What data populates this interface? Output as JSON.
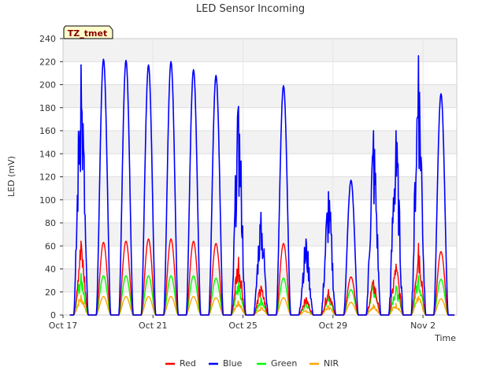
{
  "chart_data": {
    "type": "line",
    "title": "LED Sensor Incoming",
    "xlabel": "Time",
    "ylabel": "LED (mV)",
    "ylim": [
      0,
      240
    ],
    "yticks": [
      0,
      20,
      40,
      60,
      80,
      100,
      120,
      140,
      160,
      180,
      200,
      220,
      240
    ],
    "xlim_days": [
      0,
      17.5
    ],
    "x_unit": "days since Oct 17",
    "xticks": [
      {
        "day": 0,
        "label": "Oct 17"
      },
      {
        "day": 4,
        "label": "Oct 21"
      },
      {
        "day": 8,
        "label": "Oct 25"
      },
      {
        "day": 12,
        "label": "Oct 29"
      },
      {
        "day": 16,
        "label": "Nov 2"
      }
    ],
    "grid": true,
    "legend": "bottom-center",
    "badge": "TZ_tmet",
    "daily_peak_day": [
      0.8,
      1.8,
      2.8,
      3.8,
      4.8,
      5.8,
      6.8,
      7.8,
      8.8,
      9.8,
      10.8,
      11.8,
      12.8,
      13.8,
      14.8,
      15.8,
      16.8
    ],
    "series": [
      {
        "name": "Red",
        "color": "#ff0000",
        "peaks": [
          64,
          63,
          64,
          66,
          66,
          64,
          62,
          50,
          25,
          62,
          15,
          22,
          33,
          30,
          44,
          62,
          55
        ]
      },
      {
        "name": "Blue",
        "color": "#0000ff",
        "peaks": [
          217,
          222,
          221,
          217,
          220,
          213,
          208,
          181,
          89,
          199,
          66,
          107,
          117,
          160,
          160,
          225,
          192
        ]
      },
      {
        "name": "Green",
        "color": "#00ff00",
        "peaks": [
          36,
          34,
          34,
          34,
          34,
          34,
          32,
          28,
          15,
          32,
          10,
          16,
          22,
          27,
          25,
          34,
          31
        ]
      },
      {
        "name": "NIR",
        "color": "#ffa500",
        "peaks": [
          17,
          16,
          16,
          16,
          16,
          16,
          15,
          12,
          7,
          15,
          4,
          8,
          11,
          9,
          10,
          16,
          14
        ]
      }
    ]
  }
}
